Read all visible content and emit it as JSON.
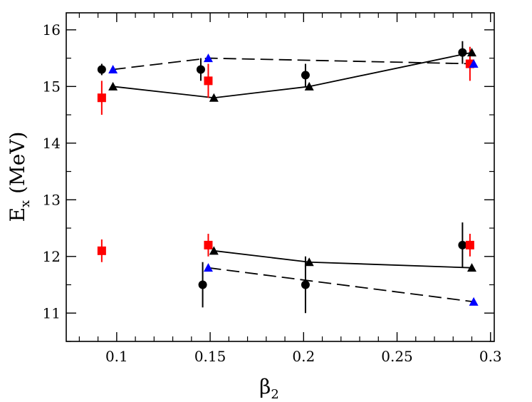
{
  "chart_data": {
    "type": "scatter",
    "title": "",
    "xlabel": {
      "main": "β",
      "sub": "2"
    },
    "ylabel": {
      "main": "E",
      "sub": "x",
      "rest": " (MeV)"
    },
    "xlim": [
      0.073,
      0.302
    ],
    "ylim": [
      10.5,
      16.3
    ],
    "grid": false,
    "x_ticks": [
      {
        "value": 0.1,
        "label": "0.1"
      },
      {
        "value": 0.15,
        "label": "0.15"
      },
      {
        "value": 0.2,
        "label": "0.2"
      },
      {
        "value": 0.25,
        "label": "0.25"
      },
      {
        "value": 0.3,
        "label": "0.3"
      }
    ],
    "y_ticks": [
      {
        "value": 11,
        "label": "11"
      },
      {
        "value": 12,
        "label": "12"
      },
      {
        "value": 13,
        "label": "13"
      },
      {
        "value": 14,
        "label": "14"
      },
      {
        "value": 15,
        "label": "15"
      },
      {
        "value": 16,
        "label": "16"
      }
    ],
    "series": [
      {
        "name": "black-circles",
        "marker": "circle",
        "color": "#000000",
        "line": "none",
        "points": [
          {
            "x": 0.092,
            "y": 15.3,
            "err": 0.1
          },
          {
            "x": 0.145,
            "y": 15.3,
            "err": 0.2
          },
          {
            "x": 0.201,
            "y": 15.2,
            "err": 0.2
          },
          {
            "x": 0.285,
            "y": 15.6,
            "err": 0.2
          },
          {
            "x": 0.146,
            "y": 11.5,
            "err": 0.4
          },
          {
            "x": 0.201,
            "y": 11.5,
            "err": 0.5
          },
          {
            "x": 0.285,
            "y": 12.2,
            "err": 0.4
          }
        ]
      },
      {
        "name": "red-squares",
        "marker": "square",
        "color": "#ff0000",
        "line": "none",
        "points": [
          {
            "x": 0.092,
            "y": 14.8,
            "err": 0.3
          },
          {
            "x": 0.149,
            "y": 15.1,
            "err": 0.3
          },
          {
            "x": 0.289,
            "y": 15.4,
            "err": 0.3
          },
          {
            "x": 0.092,
            "y": 12.1,
            "err": 0.2
          },
          {
            "x": 0.149,
            "y": 12.2,
            "err": 0.2
          },
          {
            "x": 0.289,
            "y": 12.2,
            "err": 0.2
          }
        ]
      },
      {
        "name": "black-triangles-upper",
        "marker": "triangle",
        "color": "#000000",
        "line": "solid",
        "points": [
          {
            "x": 0.098,
            "y": 15.0
          },
          {
            "x": 0.152,
            "y": 14.8
          },
          {
            "x": 0.203,
            "y": 15.0
          },
          {
            "x": 0.29,
            "y": 15.6
          }
        ]
      },
      {
        "name": "blue-triangles-upper",
        "marker": "triangle",
        "color": "#0000ff",
        "line": "dashed",
        "points": [
          {
            "x": 0.098,
            "y": 15.3
          },
          {
            "x": 0.149,
            "y": 15.5
          },
          {
            "x": 0.291,
            "y": 15.4
          }
        ]
      },
      {
        "name": "black-triangles-lower",
        "marker": "triangle",
        "color": "#000000",
        "line": "solid",
        "points": [
          {
            "x": 0.152,
            "y": 12.1
          },
          {
            "x": 0.203,
            "y": 11.9
          },
          {
            "x": 0.29,
            "y": 11.8
          }
        ]
      },
      {
        "name": "blue-triangles-lower",
        "marker": "triangle",
        "color": "#0000ff",
        "line": "dashed",
        "points": [
          {
            "x": 0.149,
            "y": 11.8
          },
          {
            "x": 0.291,
            "y": 11.2
          }
        ]
      }
    ]
  }
}
